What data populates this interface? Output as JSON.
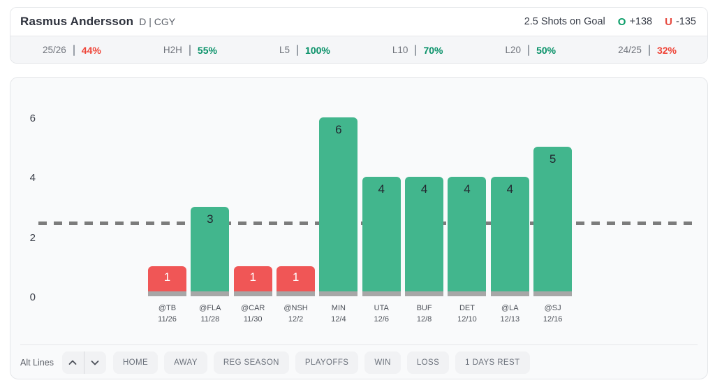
{
  "header": {
    "player_name": "Rasmus Andersson",
    "position_team": "D | CGY",
    "prop_label": "2.5 Shots on Goal",
    "over_label": "O",
    "over_odds": "+138",
    "under_label": "U",
    "under_odds": "-135"
  },
  "splits": [
    {
      "label": "25/26",
      "value": "44%",
      "status": "red"
    },
    {
      "label": "H2H",
      "value": "55%",
      "status": "green"
    },
    {
      "label": "L5",
      "value": "100%",
      "status": "green"
    },
    {
      "label": "L10",
      "value": "70%",
      "status": "green"
    },
    {
      "label": "L20",
      "value": "50%",
      "status": "green"
    },
    {
      "label": "24/25",
      "value": "32%",
      "status": "red"
    }
  ],
  "chart_data": {
    "type": "bar",
    "title": "",
    "xlabel": "",
    "ylabel": "Shots on Goal",
    "categories": [
      "@TB 11/26",
      "@FLA 11/28",
      "@CAR 11/30",
      "@NSH 12/2",
      "MIN 12/4",
      "UTA 12/6",
      "BUF 12/8",
      "DET 12/10",
      "@LA 12/13",
      "@SJ 12/16"
    ],
    "values": [
      1,
      3,
      1,
      1,
      6,
      4,
      4,
      4,
      4,
      5
    ],
    "games": [
      {
        "opponent": "@TB",
        "date": "11/26",
        "shots": 1
      },
      {
        "opponent": "@FLA",
        "date": "11/28",
        "shots": 3
      },
      {
        "opponent": "@CAR",
        "date": "11/30",
        "shots": 1
      },
      {
        "opponent": "@NSH",
        "date": "12/2",
        "shots": 1
      },
      {
        "opponent": "MIN",
        "date": "12/4",
        "shots": 6
      },
      {
        "opponent": "UTA",
        "date": "12/6",
        "shots": 4
      },
      {
        "opponent": "BUF",
        "date": "12/8",
        "shots": 4
      },
      {
        "opponent": "DET",
        "date": "12/10",
        "shots": 4
      },
      {
        "opponent": "@LA",
        "date": "12/13",
        "shots": 4
      },
      {
        "opponent": "@SJ",
        "date": "12/16",
        "shots": 5
      }
    ],
    "threshold_line": 2.5,
    "y_ticks": [
      0,
      2,
      4,
      6
    ],
    "ylim": [
      0,
      7
    ],
    "grid": false,
    "legend": "none",
    "colors": {
      "bar_over": "#42b68d",
      "bar_under": "#f05656",
      "bar_base": "#a7a7a7",
      "threshold": "#7c7c7c",
      "over_text": "#089168",
      "under_text": "#ef4437"
    }
  },
  "toolbar": {
    "alt_lines_label": "Alt Lines",
    "stepper_up_icon": "chevron-up",
    "stepper_down_icon": "chevron-down",
    "filters": [
      "HOME",
      "AWAY",
      "REG SEASON",
      "PLAYOFFS",
      "WIN",
      "LOSS",
      "1 DAYS REST"
    ]
  }
}
